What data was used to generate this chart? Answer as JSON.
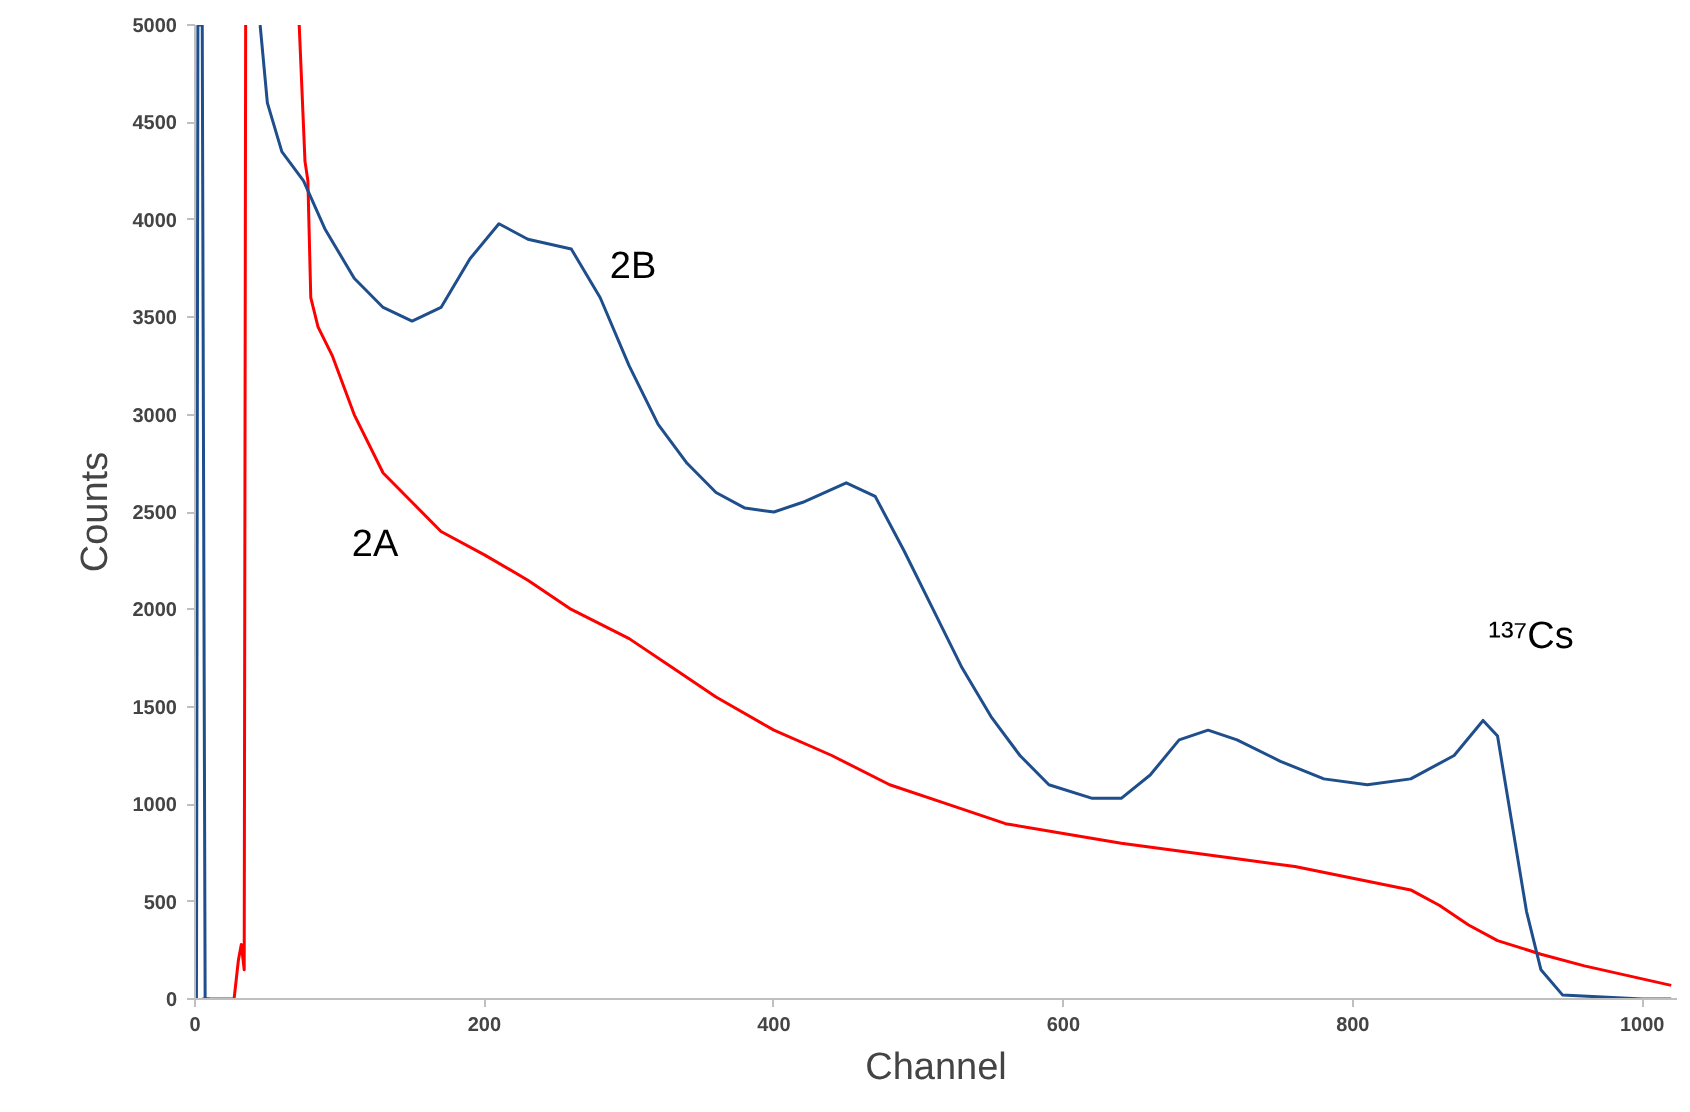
{
  "chart_data": {
    "type": "line",
    "xlabel": "Channel",
    "ylabel": "Counts",
    "xlim": [
      0,
      1024
    ],
    "ylim": [
      0,
      5000
    ],
    "xticks": [
      0,
      200,
      400,
      600,
      800,
      1000
    ],
    "yticks": [
      0,
      500,
      1000,
      1500,
      2000,
      2500,
      3000,
      3500,
      4000,
      4500,
      5000
    ],
    "grid": false,
    "marker": "none",
    "line_style": "solid",
    "series": [
      {
        "color": "#ff0000",
        "x": [
          5,
          27,
          30,
          32,
          34,
          35,
          50,
          72,
          76,
          78,
          80,
          85,
          95,
          110,
          130,
          150,
          170,
          200,
          230,
          260,
          300,
          330,
          360,
          400,
          440,
          480,
          520,
          560,
          600,
          640,
          680,
          720,
          760,
          800,
          840,
          860,
          880,
          900,
          930,
          960,
          990,
          1020
        ],
        "values": [
          0,
          0,
          200,
          280,
          150,
          5000,
          null,
          5000,
          4300,
          4200,
          3600,
          3450,
          3300,
          3000,
          2700,
          2550,
          2400,
          2280,
          2150,
          2000,
          1850,
          1700,
          1550,
          1380,
          1250,
          1100,
          1000,
          900,
          850,
          800,
          760,
          720,
          680,
          620,
          560,
          480,
          380,
          300,
          230,
          170,
          120,
          70
        ]
      },
      {
        "color": "#1f4e8c",
        "x": [
          1,
          2,
          5,
          7,
          10,
          20,
          45,
          50,
          60,
          75,
          90,
          110,
          130,
          150,
          170,
          190,
          210,
          230,
          260,
          280,
          300,
          320,
          340,
          360,
          380,
          400,
          420,
          450,
          470,
          490,
          510,
          530,
          550,
          570,
          590,
          620,
          640,
          660,
          680,
          700,
          720,
          750,
          780,
          810,
          840,
          870,
          890,
          900,
          910,
          920,
          930,
          945,
          1000,
          1020
        ],
        "values": [
          0,
          5000,
          5000,
          0,
          0,
          null,
          5000,
          4600,
          4350,
          4200,
          3950,
          3700,
          3550,
          3480,
          3550,
          3800,
          3980,
          3900,
          3850,
          3600,
          3250,
          2950,
          2750,
          2600,
          2520,
          2500,
          2550,
          2650,
          2580,
          2300,
          2000,
          1700,
          1450,
          1250,
          1100,
          1030,
          1030,
          1150,
          1330,
          1380,
          1330,
          1220,
          1130,
          1100,
          1130,
          1250,
          1430,
          1350,
          900,
          450,
          150,
          20,
          0,
          0
        ]
      }
    ],
    "annotations": [
      "2B",
      "2A",
      "¹³⁷Cs"
    ]
  }
}
